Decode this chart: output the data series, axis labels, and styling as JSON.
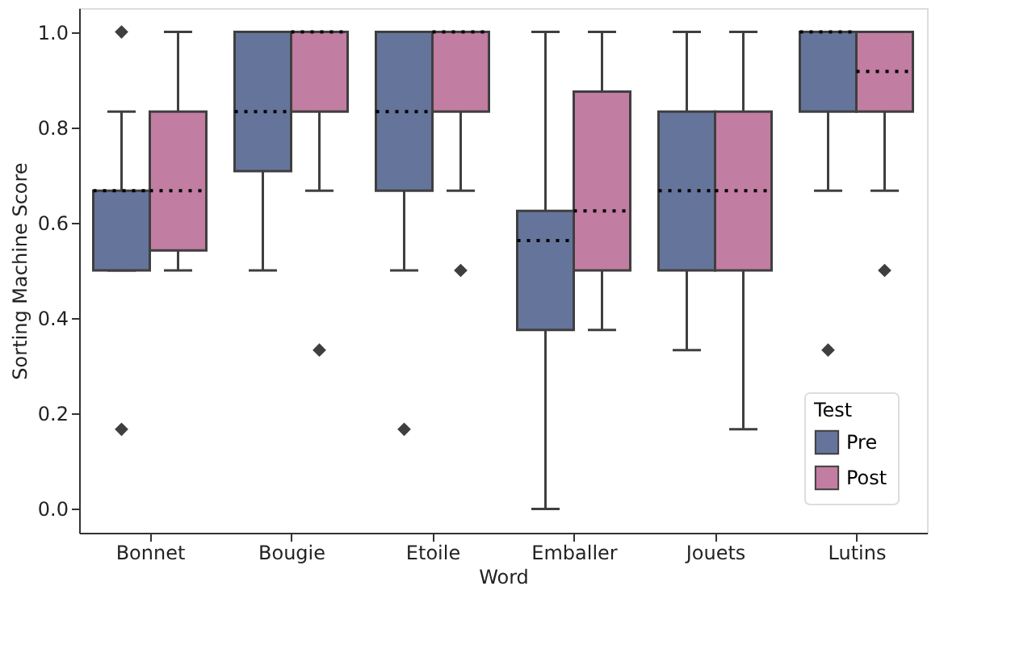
{
  "chart_data": {
    "type": "box",
    "xlabel": "Word",
    "ylabel": "Sorting Machine Score",
    "legend_title": "Test",
    "legend": "bottom right",
    "grid": false,
    "categories": [
      "Bonnet",
      "Bougie",
      "Etoile",
      "Emballer",
      "Jouets",
      "Lutins"
    ],
    "ylim": [
      -0.05,
      1.05
    ],
    "yticks": [
      {
        "value": 0,
        "label": "0.0"
      },
      {
        "value": 0.2,
        "label": "0.2"
      },
      {
        "value": 0.4,
        "label": "0.4"
      },
      {
        "value": 0.6,
        "label": "0.6"
      },
      {
        "value": 0.8,
        "label": "0.8"
      },
      {
        "value": 1,
        "label": "1.0"
      }
    ],
    "series": [
      {
        "name": "Pre",
        "color": "#65749a",
        "boxes": [
          {
            "low": 0.5,
            "q1": 0.5,
            "median": 0.667,
            "q3": 0.667,
            "high": 0.833,
            "outliers": [
              1.0,
              0.167
            ]
          },
          {
            "low": 0.5,
            "q1": 0.708,
            "median": 0.833,
            "q3": 1.0,
            "high": 1.0
          },
          {
            "low": 0.5,
            "q1": 0.667,
            "median": 0.833,
            "q3": 1.0,
            "high": 1.0,
            "outliers": [
              0.167
            ]
          },
          {
            "low": 0.0,
            "q1": 0.375,
            "median": 0.5625,
            "q3": 0.625,
            "high": 1.0
          },
          {
            "low": 0.333,
            "q1": 0.5,
            "median": 0.667,
            "q3": 0.833,
            "high": 1.0
          },
          {
            "low": 0.667,
            "q1": 0.833,
            "median": 1.0,
            "q3": 1.0,
            "high": 1.0,
            "outliers": [
              0.333
            ]
          }
        ]
      },
      {
        "name": "Post",
        "color": "#c17da2",
        "boxes": [
          {
            "low": 0.5,
            "q1": 0.542,
            "median": 0.667,
            "q3": 0.833,
            "high": 1.0
          },
          {
            "low": 0.667,
            "q1": 0.833,
            "median": 1.0,
            "q3": 1.0,
            "high": 1.0,
            "outliers": [
              0.333
            ]
          },
          {
            "low": 0.667,
            "q1": 0.833,
            "median": 1.0,
            "q3": 1.0,
            "high": 1.0,
            "outliers": [
              0.5
            ]
          },
          {
            "low": 0.375,
            "q1": 0.5,
            "median": 0.625,
            "q3": 0.875,
            "high": 1.0
          },
          {
            "low": 0.167,
            "q1": 0.5,
            "median": 0.667,
            "q3": 0.833,
            "high": 1.0
          },
          {
            "low": 0.667,
            "q1": 0.833,
            "median": 0.917,
            "q3": 1.0,
            "high": 1.0,
            "outliers": [
              0.5
            ]
          }
        ]
      }
    ]
  }
}
